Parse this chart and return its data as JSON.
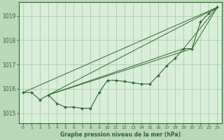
{
  "background_color": "#b8d8b8",
  "plot_bg_color": "#d8eed8",
  "grid_color": "#9fc99f",
  "line_color": "#2d6a2d",
  "title": "Graphe pression niveau de la mer (hPa)",
  "xlim": [
    -0.5,
    23.5
  ],
  "ylim": [
    1014.6,
    1019.55
  ],
  "yticks": [
    1015,
    1016,
    1017,
    1018,
    1019
  ],
  "xticks": [
    0,
    1,
    2,
    3,
    4,
    5,
    6,
    7,
    8,
    9,
    10,
    11,
    12,
    13,
    14,
    15,
    16,
    17,
    18,
    19,
    20,
    21,
    22,
    23
  ],
  "main_series": [
    [
      0,
      1015.85
    ],
    [
      1,
      1015.85
    ],
    [
      2,
      1015.55
    ],
    [
      3,
      1015.75
    ],
    [
      4,
      1015.4
    ],
    [
      5,
      1015.25
    ],
    [
      6,
      1015.25
    ],
    [
      7,
      1015.2
    ],
    [
      8,
      1015.2
    ],
    [
      9,
      1015.85
    ],
    [
      10,
      1016.35
    ],
    [
      11,
      1016.35
    ],
    [
      12,
      1016.3
    ],
    [
      13,
      1016.25
    ],
    [
      14,
      1016.2
    ],
    [
      15,
      1016.2
    ],
    [
      16,
      1016.55
    ],
    [
      17,
      1016.95
    ],
    [
      18,
      1017.25
    ],
    [
      19,
      1017.65
    ],
    [
      20,
      1017.65
    ],
    [
      21,
      1018.75
    ],
    [
      22,
      1019.1
    ],
    [
      23,
      1019.35
    ]
  ],
  "trend_lines": [
    [
      [
        0,
        1015.85
      ],
      [
        23,
        1019.35
      ]
    ],
    [
      [
        3,
        1015.75
      ],
      [
        23,
        1019.35
      ]
    ],
    [
      [
        3,
        1015.75
      ],
      [
        20,
        1017.65
      ],
      [
        23,
        1019.35
      ]
    ],
    [
      [
        3,
        1015.75
      ],
      [
        19,
        1017.65
      ],
      [
        23,
        1019.35
      ]
    ]
  ]
}
